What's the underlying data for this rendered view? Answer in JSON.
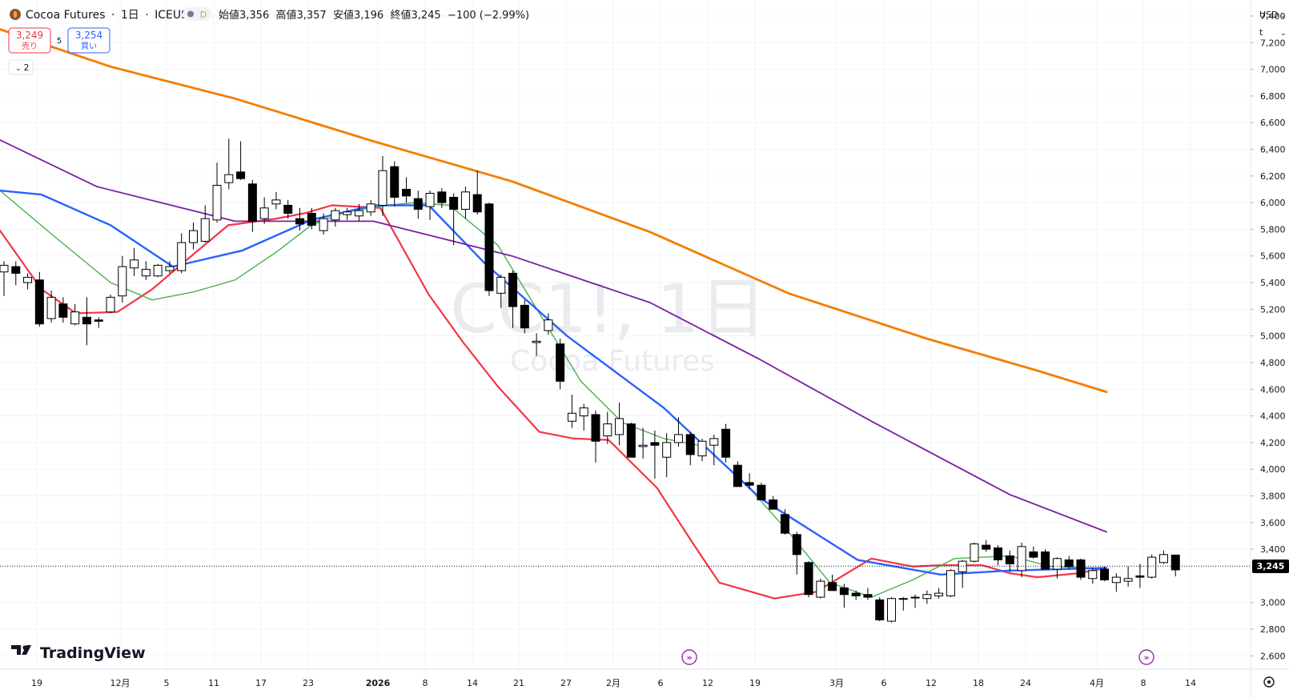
{
  "header": {
    "symbol_name": "Cocoa Futures",
    "sep1": "·",
    "timeframe": "1日",
    "sep2": "·",
    "exchange": "ICEUS",
    "delay_badge": "D",
    "ohlc": "始値3,356  高値3,357  安値3,196  終値3,245  −100 (−2.99%)"
  },
  "trade": {
    "sell_price": "3,249",
    "sell_label": "売り",
    "spread": "5",
    "buy_price": "3,254",
    "buy_label": "買い"
  },
  "indicators_toggle": {
    "count": "2"
  },
  "price_axis": {
    "currency": "USD",
    "unit": "t",
    "ticks": [
      "7,400",
      "7,200",
      "7,000",
      "6,800",
      "6,600",
      "6,400",
      "6,200",
      "6,000",
      "5,800",
      "5,600",
      "5,400",
      "5,200",
      "5,000",
      "4,800",
      "4,600",
      "4,400",
      "4,200",
      "4,000",
      "3,800",
      "3,600",
      "3,400",
      "3,000",
      "2,800",
      "2,600"
    ],
    "last_price": "3,245"
  },
  "time_axis": {
    "labels": [
      "19",
      "12月",
      "5",
      "11",
      "17",
      "23",
      "2026",
      "8",
      "14",
      "21",
      "27",
      "2月",
      "6",
      "12",
      "19",
      "3月",
      "6",
      "12",
      "18",
      "24",
      "4月",
      "8",
      "14"
    ]
  },
  "watermark": {
    "symbol": "CC1!, 1日",
    "name": "Cocoa Futures"
  },
  "brand": {
    "name": "TradingView"
  },
  "colors": {
    "up_body": "#ffffff",
    "down_body": "#000000",
    "ma_red": "#f23645",
    "ma_green": "#4caf50",
    "ma_blue": "#2962ff",
    "ma_purple": "#7b1fa2",
    "ma_orange": "#f57c00"
  },
  "chart_data": {
    "type": "candlestick",
    "y_axis_range": [
      2500,
      7520
    ],
    "last_price": 3245,
    "candles": [
      {
        "o": 5480,
        "h": 5560,
        "l": 5300,
        "c": 5530
      },
      {
        "o": 5520,
        "h": 5560,
        "l": 5380,
        "c": 5470
      },
      {
        "o": 5400,
        "h": 5470,
        "l": 5350,
        "c": 5440
      },
      {
        "o": 5420,
        "h": 5480,
        "l": 5070,
        "c": 5090
      },
      {
        "o": 5130,
        "h": 5340,
        "l": 5100,
        "c": 5290
      },
      {
        "o": 5240,
        "h": 5290,
        "l": 5100,
        "c": 5140
      },
      {
        "o": 5090,
        "h": 5240,
        "l": 5080,
        "c": 5180
      },
      {
        "o": 5140,
        "h": 5290,
        "l": 4930,
        "c": 5090
      },
      {
        "o": 5120,
        "h": 5140,
        "l": 5060,
        "c": 5110
      },
      {
        "o": 5180,
        "h": 5310,
        "l": 5170,
        "c": 5290
      },
      {
        "o": 5300,
        "h": 5600,
        "l": 5250,
        "c": 5520
      },
      {
        "o": 5510,
        "h": 5660,
        "l": 5450,
        "c": 5570
      },
      {
        "o": 5450,
        "h": 5560,
        "l": 5420,
        "c": 5500
      },
      {
        "o": 5450,
        "h": 5540,
        "l": 5440,
        "c": 5530
      },
      {
        "o": 5490,
        "h": 5560,
        "l": 5470,
        "c": 5520
      },
      {
        "o": 5490,
        "h": 5770,
        "l": 5470,
        "c": 5700
      },
      {
        "o": 5700,
        "h": 5850,
        "l": 5650,
        "c": 5790
      },
      {
        "o": 5710,
        "h": 5980,
        "l": 5700,
        "c": 5880
      },
      {
        "o": 5870,
        "h": 6300,
        "l": 5850,
        "c": 6130
      },
      {
        "o": 6150,
        "h": 6480,
        "l": 6100,
        "c": 6210
      },
      {
        "o": 6230,
        "h": 6460,
        "l": 6170,
        "c": 6180
      },
      {
        "o": 6140,
        "h": 6170,
        "l": 5780,
        "c": 5860
      },
      {
        "o": 5880,
        "h": 6040,
        "l": 5840,
        "c": 5960
      },
      {
        "o": 5990,
        "h": 6080,
        "l": 5950,
        "c": 6020
      },
      {
        "o": 5980,
        "h": 6020,
        "l": 5880,
        "c": 5920
      },
      {
        "o": 5880,
        "h": 5960,
        "l": 5790,
        "c": 5840
      },
      {
        "o": 5920,
        "h": 5960,
        "l": 5800,
        "c": 5830
      },
      {
        "o": 5790,
        "h": 5920,
        "l": 5760,
        "c": 5880
      },
      {
        "o": 5870,
        "h": 5960,
        "l": 5820,
        "c": 5940
      },
      {
        "o": 5910,
        "h": 5960,
        "l": 5870,
        "c": 5930
      },
      {
        "o": 5900,
        "h": 5990,
        "l": 5860,
        "c": 5940
      },
      {
        "o": 5930,
        "h": 6020,
        "l": 5900,
        "c": 5990
      },
      {
        "o": 5980,
        "h": 6350,
        "l": 5900,
        "c": 6240
      },
      {
        "o": 6270,
        "h": 6310,
        "l": 5970,
        "c": 6040
      },
      {
        "o": 6100,
        "h": 6190,
        "l": 6000,
        "c": 6050
      },
      {
        "o": 6030,
        "h": 6090,
        "l": 5880,
        "c": 5950
      },
      {
        "o": 5970,
        "h": 6090,
        "l": 5870,
        "c": 6070
      },
      {
        "o": 6080,
        "h": 6110,
        "l": 5960,
        "c": 6000
      },
      {
        "o": 6040,
        "h": 6070,
        "l": 5680,
        "c": 5950
      },
      {
        "o": 5950,
        "h": 6120,
        "l": 5880,
        "c": 6080
      },
      {
        "o": 6060,
        "h": 6240,
        "l": 5910,
        "c": 5930
      },
      {
        "o": 5990,
        "h": 6000,
        "l": 5300,
        "c": 5340
      },
      {
        "o": 5320,
        "h": 5460,
        "l": 5210,
        "c": 5440
      },
      {
        "o": 5470,
        "h": 5490,
        "l": 5060,
        "c": 5220
      },
      {
        "o": 5230,
        "h": 5270,
        "l": 5020,
        "c": 5060
      },
      {
        "o": 4950,
        "h": 5020,
        "l": 4850,
        "c": 4960
      },
      {
        "o": 5040,
        "h": 5170,
        "l": 5010,
        "c": 5120
      },
      {
        "o": 4940,
        "h": 4980,
        "l": 4600,
        "c": 4660
      },
      {
        "o": 4360,
        "h": 4560,
        "l": 4310,
        "c": 4420
      },
      {
        "o": 4400,
        "h": 4490,
        "l": 4290,
        "c": 4460
      },
      {
        "o": 4410,
        "h": 4440,
        "l": 4050,
        "c": 4210
      },
      {
        "o": 4250,
        "h": 4430,
        "l": 4190,
        "c": 4340
      },
      {
        "o": 4260,
        "h": 4500,
        "l": 4180,
        "c": 4380
      },
      {
        "o": 4340,
        "h": 4350,
        "l": 4090,
        "c": 4090
      },
      {
        "o": 4170,
        "h": 4310,
        "l": 4080,
        "c": 4180
      },
      {
        "o": 4200,
        "h": 4290,
        "l": 3930,
        "c": 4180
      },
      {
        "o": 4090,
        "h": 4270,
        "l": 3940,
        "c": 4200
      },
      {
        "o": 4200,
        "h": 4390,
        "l": 4170,
        "c": 4260
      },
      {
        "o": 4260,
        "h": 4280,
        "l": 4030,
        "c": 4110
      },
      {
        "o": 4100,
        "h": 4230,
        "l": 4060,
        "c": 4210
      },
      {
        "o": 4180,
        "h": 4260,
        "l": 4030,
        "c": 4230
      },
      {
        "o": 4300,
        "h": 4340,
        "l": 4050,
        "c": 4090
      },
      {
        "o": 4030,
        "h": 4060,
        "l": 3870,
        "c": 3870
      },
      {
        "o": 3900,
        "h": 3970,
        "l": 3850,
        "c": 3880
      },
      {
        "o": 3880,
        "h": 3900,
        "l": 3770,
        "c": 3770
      },
      {
        "o": 3770,
        "h": 3800,
        "l": 3700,
        "c": 3700
      },
      {
        "o": 3660,
        "h": 3700,
        "l": 3510,
        "c": 3520
      },
      {
        "o": 3510,
        "h": 3530,
        "l": 3210,
        "c": 3360
      },
      {
        "o": 3300,
        "h": 3310,
        "l": 3040,
        "c": 3060
      },
      {
        "o": 3040,
        "h": 3180,
        "l": 3030,
        "c": 3160
      },
      {
        "o": 3150,
        "h": 3210,
        "l": 3090,
        "c": 3090
      },
      {
        "o": 3110,
        "h": 3140,
        "l": 2960,
        "c": 3060
      },
      {
        "o": 3070,
        "h": 3090,
        "l": 3020,
        "c": 3050
      },
      {
        "o": 3060,
        "h": 3110,
        "l": 3020,
        "c": 3040
      },
      {
        "o": 3020,
        "h": 3040,
        "l": 2860,
        "c": 2870
      },
      {
        "o": 2860,
        "h": 3040,
        "l": 2850,
        "c": 3030
      },
      {
        "o": 3030,
        "h": 3040,
        "l": 2940,
        "c": 3030
      },
      {
        "o": 3040,
        "h": 3060,
        "l": 2960,
        "c": 3040
      },
      {
        "o": 3030,
        "h": 3090,
        "l": 2990,
        "c": 3060
      },
      {
        "o": 3050,
        "h": 3110,
        "l": 3030,
        "c": 3070
      },
      {
        "o": 3050,
        "h": 3250,
        "l": 3040,
        "c": 3240
      },
      {
        "o": 3230,
        "h": 3320,
        "l": 3110,
        "c": 3310
      },
      {
        "o": 3310,
        "h": 3450,
        "l": 3300,
        "c": 3440
      },
      {
        "o": 3430,
        "h": 3470,
        "l": 3380,
        "c": 3400
      },
      {
        "o": 3410,
        "h": 3430,
        "l": 3280,
        "c": 3320
      },
      {
        "o": 3350,
        "h": 3390,
        "l": 3230,
        "c": 3290
      },
      {
        "o": 3240,
        "h": 3450,
        "l": 3190,
        "c": 3420
      },
      {
        "o": 3380,
        "h": 3420,
        "l": 3330,
        "c": 3340
      },
      {
        "o": 3380,
        "h": 3400,
        "l": 3250,
        "c": 3250
      },
      {
        "o": 3250,
        "h": 3340,
        "l": 3180,
        "c": 3330
      },
      {
        "o": 3320,
        "h": 3350,
        "l": 3250,
        "c": 3270
      },
      {
        "o": 3320,
        "h": 3330,
        "l": 3170,
        "c": 3190
      },
      {
        "o": 3180,
        "h": 3260,
        "l": 3140,
        "c": 3240
      },
      {
        "o": 3250,
        "h": 3270,
        "l": 3160,
        "c": 3170
      },
      {
        "o": 3150,
        "h": 3220,
        "l": 3080,
        "c": 3190
      },
      {
        "o": 3160,
        "h": 3270,
        "l": 3120,
        "c": 3180
      },
      {
        "o": 3200,
        "h": 3290,
        "l": 3110,
        "c": 3190
      },
      {
        "o": 3190,
        "h": 3360,
        "l": 3180,
        "c": 3340
      },
      {
        "o": 3300,
        "h": 3390,
        "l": 3290,
        "c": 3360
      },
      {
        "o": 3356,
        "h": 3357,
        "l": 3196,
        "c": 3245
      }
    ],
    "moving_averages": [
      {
        "color": "#f23645",
        "values": [
          [
            0,
            5790
          ],
          [
            6,
            5350
          ],
          [
            11,
            5170
          ],
          [
            17,
            5180
          ],
          [
            22,
            5350
          ],
          [
            27,
            5570
          ],
          [
            33,
            5830
          ],
          [
            40,
            5880
          ],
          [
            44,
            5920
          ],
          [
            48,
            5980
          ],
          [
            55,
            5960
          ],
          [
            62,
            5310
          ],
          [
            67,
            4950
          ],
          [
            72,
            4620
          ],
          [
            78,
            4280
          ],
          [
            83,
            4230
          ],
          [
            88,
            4220
          ],
          [
            95,
            3860
          ],
          [
            100,
            3460
          ],
          [
            104,
            3150
          ],
          [
            112,
            3030
          ],
          [
            118,
            3080
          ],
          [
            126,
            3330
          ],
          [
            132,
            3270
          ],
          [
            136,
            3280
          ],
          [
            142,
            3280
          ],
          [
            146,
            3220
          ],
          [
            150,
            3190
          ],
          [
            156,
            3220
          ],
          [
            160,
            3260
          ]
        ]
      },
      {
        "color": "#4caf50",
        "values": [
          [
            0,
            6090
          ],
          [
            8,
            5740
          ],
          [
            16,
            5400
          ],
          [
            22,
            5270
          ],
          [
            28,
            5330
          ],
          [
            34,
            5420
          ],
          [
            40,
            5630
          ],
          [
            45,
            5830
          ],
          [
            50,
            5930
          ],
          [
            56,
            5980
          ],
          [
            60,
            6000
          ],
          [
            65,
            5980
          ],
          [
            72,
            5680
          ],
          [
            78,
            5170
          ],
          [
            84,
            4660
          ],
          [
            90,
            4350
          ],
          [
            96,
            4230
          ],
          [
            102,
            4170
          ],
          [
            108,
            3880
          ],
          [
            114,
            3530
          ],
          [
            120,
            3150
          ],
          [
            126,
            3040
          ],
          [
            132,
            3170
          ],
          [
            138,
            3330
          ],
          [
            146,
            3350
          ],
          [
            152,
            3270
          ],
          [
            158,
            3260
          ]
        ]
      },
      {
        "color": "#2962ff",
        "values": [
          [
            0,
            6090
          ],
          [
            6,
            6060
          ],
          [
            16,
            5830
          ],
          [
            25,
            5520
          ],
          [
            35,
            5640
          ],
          [
            45,
            5870
          ],
          [
            54,
            5980
          ],
          [
            62,
            5980
          ],
          [
            70,
            5550
          ],
          [
            82,
            5000
          ],
          [
            96,
            4460
          ],
          [
            110,
            3780
          ],
          [
            124,
            3320
          ],
          [
            136,
            3210
          ],
          [
            146,
            3240
          ],
          [
            160,
            3260
          ]
        ]
      },
      {
        "color": "#7b1fa2",
        "values": [
          [
            0,
            6470
          ],
          [
            14,
            6120
          ],
          [
            34,
            5860
          ],
          [
            54,
            5860
          ],
          [
            74,
            5600
          ],
          [
            94,
            5250
          ],
          [
            110,
            4820
          ],
          [
            126,
            4360
          ],
          [
            146,
            3810
          ],
          [
            160,
            3530
          ]
        ]
      },
      {
        "color": "#f57c00",
        "values": [
          [
            0,
            7300
          ],
          [
            16,
            7020
          ],
          [
            34,
            6780
          ],
          [
            54,
            6460
          ],
          [
            74,
            6160
          ],
          [
            94,
            5780
          ],
          [
            114,
            5320
          ],
          [
            134,
            4980
          ],
          [
            150,
            4740
          ],
          [
            160,
            4580
          ]
        ]
      }
    ]
  }
}
